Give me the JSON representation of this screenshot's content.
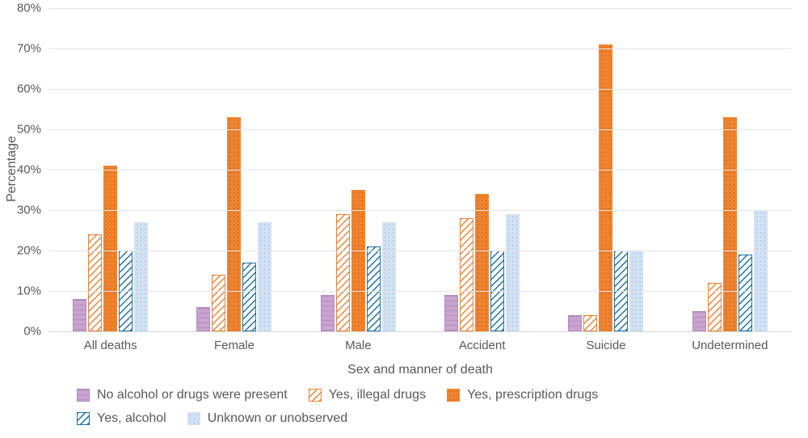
{
  "chart_data": {
    "type": "bar",
    "title": "",
    "xlabel": "Sex and manner of death",
    "ylabel": "Percentage",
    "ylim": [
      0,
      80
    ],
    "ytick_step": 10,
    "ytick_suffix": "%",
    "grid": true,
    "legend_position": "bottom",
    "categories": [
      "All deaths",
      "Female",
      "Male",
      "Accident",
      "Suicide",
      "Undetermined"
    ],
    "series": [
      {
        "name": "No alcohol or drugs were present",
        "color": "#c8a4cf",
        "pattern": "horizontal-stripes-purple",
        "values": [
          8,
          6,
          9,
          9,
          4,
          5
        ]
      },
      {
        "name": "Yes, illegal drugs",
        "color": "#e8843c",
        "pattern": "diagonal-hatch-orange",
        "values": [
          24,
          14,
          29,
          28,
          4,
          12
        ]
      },
      {
        "name": "Yes, prescription drugs",
        "color": "#ee8331",
        "pattern": "dots-dark-orange",
        "values": [
          41,
          53,
          35,
          34,
          71,
          53
        ]
      },
      {
        "name": "Yes, alcohol",
        "color": "#20719e",
        "pattern": "diagonal-hatch-blue",
        "values": [
          20,
          17,
          21,
          20,
          20,
          19
        ]
      },
      {
        "name": "Unknown or unobserved",
        "color": "#d2e2f4",
        "pattern": "dots-light-blue",
        "values": [
          27,
          27,
          27,
          29,
          20,
          30
        ]
      }
    ],
    "legend_rows": [
      [
        0,
        1,
        2
      ],
      [
        3,
        4
      ]
    ]
  },
  "colors": {
    "text": "#595959",
    "gridline": "#e4e4e4",
    "background": "#ffffff"
  }
}
